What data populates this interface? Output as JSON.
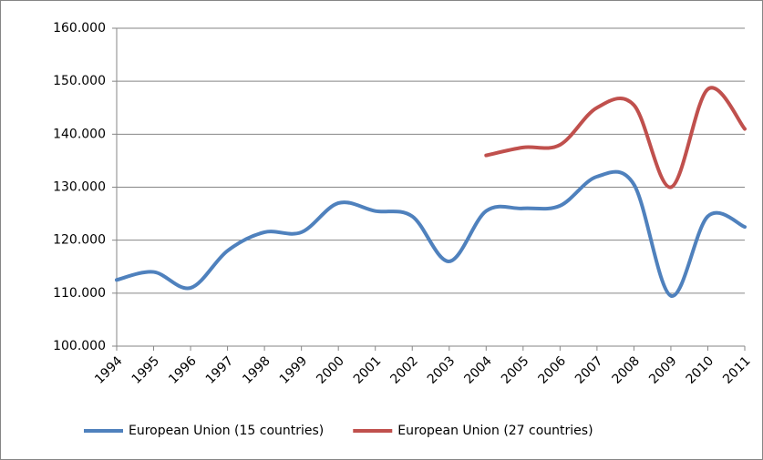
{
  "chart_data": {
    "type": "line",
    "categories": [
      "1994",
      "1995",
      "1996",
      "1997",
      "1998",
      "1999",
      "2000",
      "2001",
      "2002",
      "2003",
      "2004",
      "2005",
      "2006",
      "2007",
      "2008",
      "2009",
      "2010",
      "2011"
    ],
    "series": [
      {
        "name": "European Union (15 countries)",
        "color": "#4f81bd",
        "values": [
          112500,
          114000,
          111000,
          118000,
          121500,
          121500,
          127000,
          125500,
          124500,
          116000,
          125500,
          126000,
          126500,
          132000,
          130500,
          109500,
          124500,
          122500
        ]
      },
      {
        "name": "European Union (27 countries)",
        "color": "#c0504d",
        "values": [
          null,
          null,
          null,
          null,
          null,
          null,
          null,
          null,
          null,
          null,
          136000,
          137500,
          138000,
          145000,
          145500,
          130000,
          148500,
          141000
        ]
      }
    ],
    "ylim": [
      100000,
      160000
    ],
    "yticks": [
      {
        "value": 100000,
        "label": "100.000"
      },
      {
        "value": 110000,
        "label": "110.000"
      },
      {
        "value": 120000,
        "label": "120.000"
      },
      {
        "value": 130000,
        "label": "130.000"
      },
      {
        "value": 140000,
        "label": "140.000"
      },
      {
        "value": 150000,
        "label": "150.000"
      },
      {
        "value": 160000,
        "label": "160.000"
      }
    ],
    "grid": true,
    "legend": "bottom"
  }
}
